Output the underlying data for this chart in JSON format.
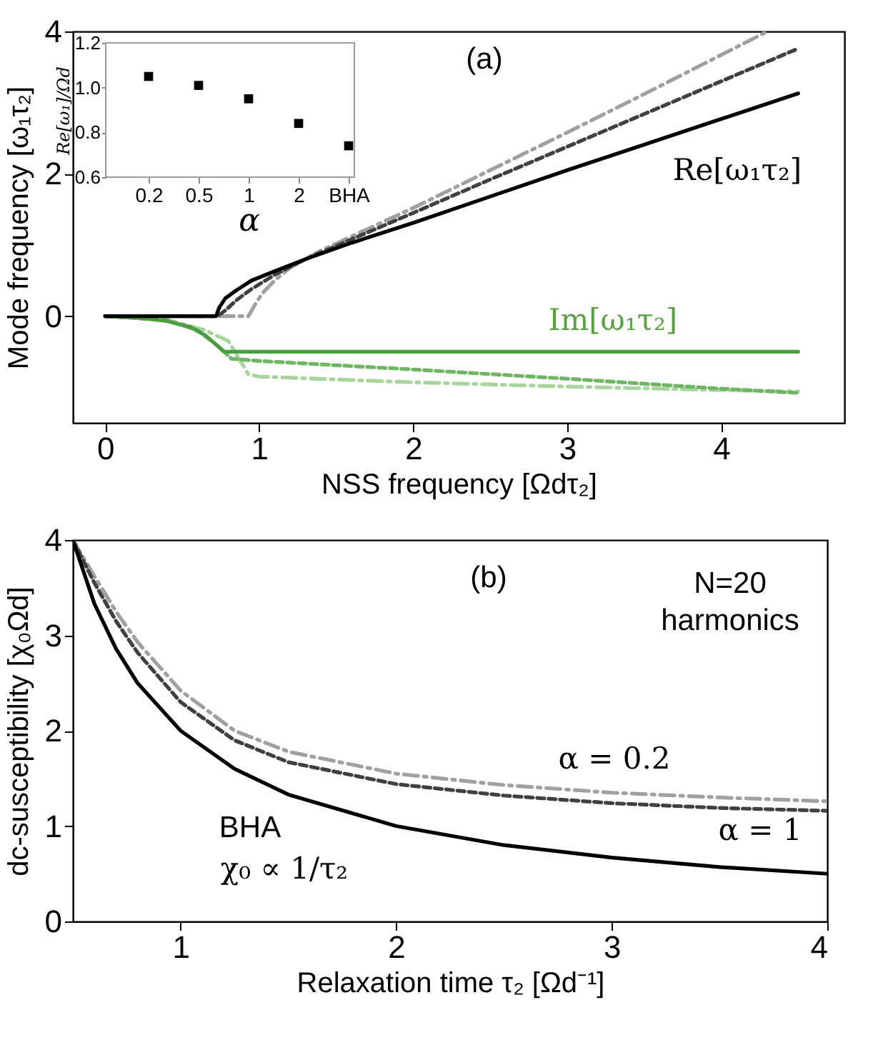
{
  "chart_data": [
    {
      "type": "line",
      "xlabel": "NSS frequency [Ωdτ₂]",
      "ylabel": "Mode frequency [ω₁τ₂]",
      "xlim": [
        -0.21,
        4.8
      ],
      "ylim": [
        -1.5,
        4
      ],
      "xticks": [
        0,
        1,
        2,
        3,
        4
      ],
      "yticks": [
        0,
        2,
        4
      ],
      "series": [
        {
          "color": "#000000",
          "line_style": "solid",
          "x": [
            0,
            0.72,
            0.74,
            0.78,
            0.85,
            0.95,
            1.1,
            1.3,
            1.6,
            2,
            2.5,
            3,
            3.5,
            4,
            4.5
          ],
          "values": [
            0,
            0,
            0.12,
            0.25,
            0.36,
            0.5,
            0.63,
            0.8,
            1.03,
            1.31,
            1.68,
            2.05,
            2.41,
            2.77,
            3.13
          ]
        },
        {
          "color": "#404040",
          "line_style": "dashed",
          "x": [
            0,
            0.73,
            0.78,
            0.85,
            0.95,
            1.1,
            1.3,
            1.6,
            2,
            2.5,
            3,
            3.5,
            4,
            4.5
          ],
          "values": [
            0,
            0,
            0.08,
            0.22,
            0.38,
            0.58,
            0.8,
            1.08,
            1.45,
            1.92,
            2.38,
            2.84,
            3.3,
            3.76
          ]
        },
        {
          "color": "#a0a0a0",
          "line_style": "dashdot",
          "x": [
            0,
            0.93,
            0.97,
            1.02,
            1.1,
            1.2,
            1.4,
            1.7,
            2,
            2.5,
            3,
            3.5,
            4,
            4.3
          ],
          "values": [
            0,
            0,
            0.15,
            0.32,
            0.5,
            0.68,
            0.92,
            1.22,
            1.52,
            2.05,
            2.58,
            3.12,
            3.67,
            4.0
          ]
        },
        {
          "color": "#4a9e3f",
          "line_style": "solid",
          "x": [
            0,
            0.2,
            0.4,
            0.55,
            0.65,
            0.72,
            0.77,
            4.5
          ],
          "values": [
            0,
            -0.02,
            -0.07,
            -0.15,
            -0.27,
            -0.4,
            -0.5,
            -0.5
          ]
        },
        {
          "color": "#6fb563",
          "line_style": "dashed",
          "x": [
            0,
            0.4,
            0.6,
            0.75,
            0.82,
            1,
            2,
            3,
            4,
            4.5
          ],
          "values": [
            0,
            -0.06,
            -0.2,
            -0.45,
            -0.6,
            -0.63,
            -0.75,
            -0.88,
            -1.02,
            -1.08
          ]
        },
        {
          "color": "#a8d49e",
          "line_style": "dashdot",
          "x": [
            0,
            0.4,
            0.65,
            0.8,
            0.93,
            1,
            2,
            3,
            4,
            4.5
          ],
          "values": [
            0,
            -0.05,
            -0.2,
            -0.35,
            -0.82,
            -0.85,
            -0.93,
            -0.99,
            -1.04,
            -1.06
          ]
        }
      ],
      "annotations": [
        "(a)",
        "Re[ω₁τ₂]",
        "Im[ω₁τ₂]"
      ]
    },
    {
      "type": "scatter",
      "marker": "square",
      "xlabel": "α",
      "ylabel": "Re[ω₁]/Ωd",
      "categories": [
        "0.2",
        "0.5",
        "1",
        "2",
        "BHA"
      ],
      "values": [
        1.05,
        1.01,
        0.95,
        0.84,
        0.74
      ],
      "color": "#000000",
      "ylim": [
        0.6,
        1.2
      ],
      "yticks": [
        0.6,
        0.8,
        {
          "value": 1.0,
          "label": "1.0"
        },
        1.2
      ]
    },
    {
      "type": "line",
      "xlabel": "Relaxation time τ₂ [Ωd⁻¹]",
      "ylabel": "dc-susceptibility [χ₀Ωd]",
      "xlim": [
        0.5,
        4
      ],
      "ylim": [
        0,
        4
      ],
      "xticks": [
        1,
        2,
        3,
        4
      ],
      "yticks": [
        0,
        1,
        2,
        3,
        4
      ],
      "series": [
        {
          "color": "#000000",
          "line_style": "solid",
          "x": [
            0.5,
            0.6,
            0.7,
            0.8,
            1,
            1.25,
            1.5,
            2,
            2.5,
            3,
            3.5,
            4
          ],
          "values": [
            4,
            3.33,
            2.86,
            2.5,
            2,
            1.6,
            1.33,
            1,
            0.8,
            0.67,
            0.57,
            0.5
          ]
        },
        {
          "color": "#404040",
          "line_style": "dashed",
          "x": [
            0.5,
            0.6,
            0.7,
            0.8,
            1,
            1.25,
            1.5,
            2,
            2.5,
            3,
            3.5,
            4
          ],
          "values": [
            4,
            3.55,
            3.15,
            2.82,
            2.3,
            1.9,
            1.67,
            1.44,
            1.32,
            1.24,
            1.19,
            1.16
          ]
        },
        {
          "color": "#a0a0a0",
          "line_style": "dashdot",
          "x": [
            0.5,
            0.6,
            0.7,
            0.8,
            1,
            1.25,
            1.5,
            2,
            2.5,
            3,
            3.5,
            4
          ],
          "values": [
            4,
            3.62,
            3.25,
            2.93,
            2.42,
            2.0,
            1.78,
            1.55,
            1.43,
            1.35,
            1.3,
            1.26
          ]
        }
      ],
      "annotations": [
        "(b)",
        "N=20\nharmonics",
        "α =  0.2",
        "α = 1",
        "BHA",
        "χ₀ ∝ 1/τ₂"
      ]
    }
  ]
}
